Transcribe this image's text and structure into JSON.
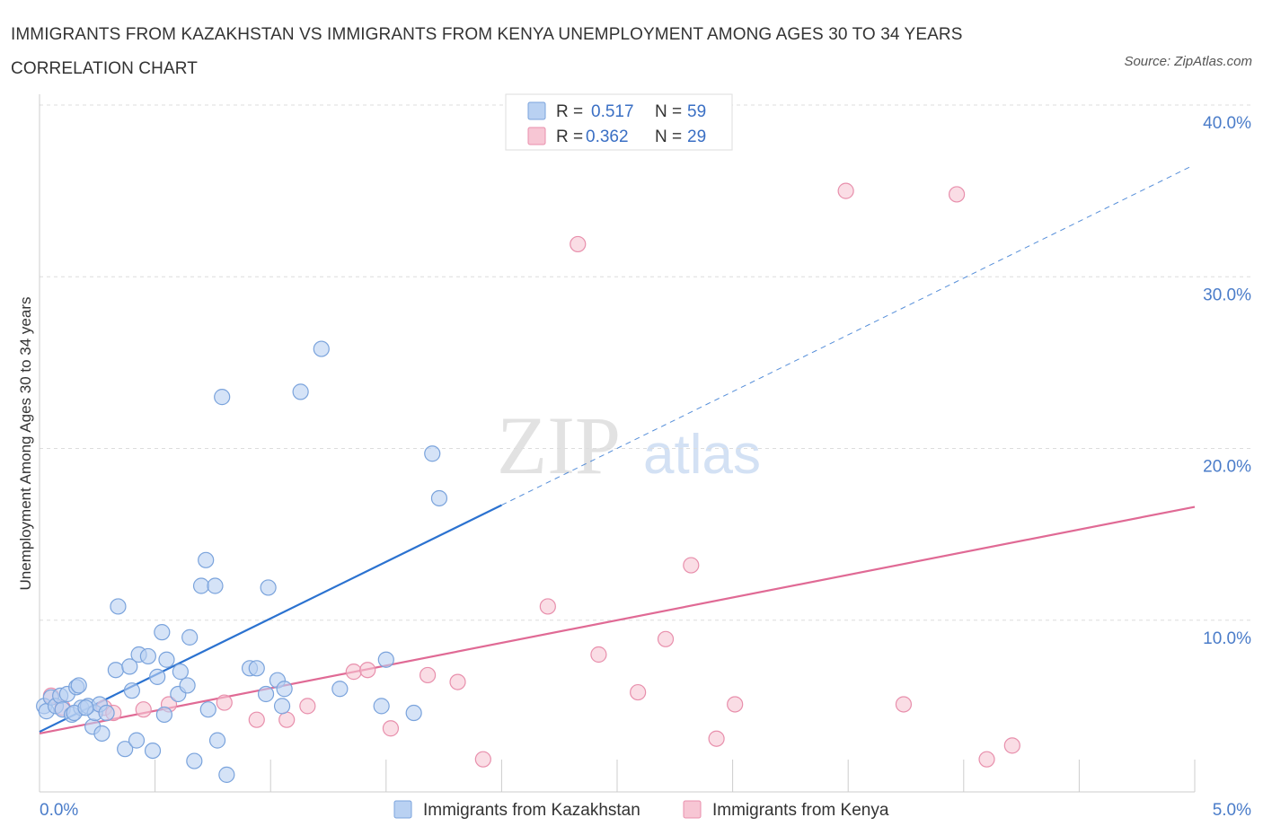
{
  "title": "IMMIGRANTS FROM KAZAKHSTAN VS IMMIGRANTS FROM KENYA UNEMPLOYMENT AMONG AGES 30 TO 34 YEARS CORRELATION CHART",
  "source": "Source: ZipAtlas.com",
  "watermark": {
    "zip": "ZIP",
    "atlas": "atlas"
  },
  "colors": {
    "blue_fill": "#b9d1f2",
    "blue_stroke": "#7aa3dc",
    "blue_line": "#2b72d0",
    "pink_fill": "#f7c6d4",
    "pink_stroke": "#e88fac",
    "pink_line": "#e06a95",
    "grid": "#dddddd",
    "axis_label": "#4a7cc9"
  },
  "chart_data": {
    "type": "scatter",
    "xlabel": "",
    "ylabel": "Unemployment Among Ages 30 to 34 years",
    "xlim": [
      0,
      5
    ],
    "ylim": [
      0,
      40
    ],
    "x_tick_labels": [
      "0.0%",
      "5.0%"
    ],
    "y_ticks": [
      10,
      20,
      30,
      40
    ],
    "y_tick_labels": [
      "10.0%",
      "20.0%",
      "30.0%",
      "40.0%"
    ],
    "legend_top": [
      {
        "r_label": "R =",
        "r": "0.517",
        "n_label": "N =",
        "n": "59"
      },
      {
        "r_label": "R =",
        "r": "0.362",
        "n_label": "N =",
        "n": "29"
      }
    ],
    "series": [
      {
        "name": "Immigrants from Kazakhstan",
        "color": "blue",
        "trend": {
          "x0": 0,
          "y0": 3.5,
          "x1": 2.0,
          "y1": 16.7,
          "dashed_to_x": 4.98,
          "dashed_to_y": 36.4
        },
        "points": [
          [
            0.02,
            5.0
          ],
          [
            0.03,
            4.7
          ],
          [
            0.05,
            5.5
          ],
          [
            0.07,
            5.0
          ],
          [
            0.09,
            5.6
          ],
          [
            0.1,
            4.8
          ],
          [
            0.12,
            5.7
          ],
          [
            0.14,
            4.5
          ],
          [
            0.16,
            6.1
          ],
          [
            0.17,
            6.2
          ],
          [
            0.18,
            4.9
          ],
          [
            0.21,
            5.0
          ],
          [
            0.23,
            3.8
          ],
          [
            0.24,
            4.6
          ],
          [
            0.26,
            5.1
          ],
          [
            0.27,
            3.4
          ],
          [
            0.29,
            4.6
          ],
          [
            0.33,
            7.1
          ],
          [
            0.34,
            10.8
          ],
          [
            0.37,
            2.5
          ],
          [
            0.39,
            7.3
          ],
          [
            0.4,
            5.9
          ],
          [
            0.42,
            3.0
          ],
          [
            0.43,
            8.0
          ],
          [
            0.47,
            7.9
          ],
          [
            0.49,
            2.4
          ],
          [
            0.51,
            6.7
          ],
          [
            0.53,
            9.3
          ],
          [
            0.54,
            4.5
          ],
          [
            0.55,
            7.7
          ],
          [
            0.6,
            5.7
          ],
          [
            0.61,
            7.0
          ],
          [
            0.64,
            6.2
          ],
          [
            0.65,
            9.0
          ],
          [
            0.67,
            1.8
          ],
          [
            0.7,
            12.0
          ],
          [
            0.72,
            13.5
          ],
          [
            0.73,
            4.8
          ],
          [
            0.76,
            12.0
          ],
          [
            0.77,
            3.0
          ],
          [
            0.79,
            23.0
          ],
          [
            0.81,
            1.0
          ],
          [
            0.91,
            7.2
          ],
          [
            0.94,
            7.2
          ],
          [
            0.98,
            5.7
          ],
          [
            0.99,
            11.9
          ],
          [
            1.03,
            6.5
          ],
          [
            1.05,
            5.0
          ],
          [
            1.06,
            6.0
          ],
          [
            1.13,
            23.3
          ],
          [
            1.22,
            25.8
          ],
          [
            1.3,
            6.0
          ],
          [
            1.48,
            5.0
          ],
          [
            1.5,
            7.7
          ],
          [
            1.62,
            4.6
          ],
          [
            1.7,
            19.7
          ],
          [
            1.73,
            17.1
          ],
          [
            0.15,
            4.6
          ],
          [
            0.2,
            4.9
          ]
        ]
      },
      {
        "name": "Immigrants from Kenya",
        "color": "pink",
        "trend": {
          "x0": 0,
          "y0": 3.4,
          "x1": 5.0,
          "y1": 16.6
        },
        "points": [
          [
            0.05,
            5.6
          ],
          [
            0.1,
            4.9
          ],
          [
            0.28,
            4.9
          ],
          [
            0.45,
            4.8
          ],
          [
            0.56,
            5.1
          ],
          [
            0.8,
            5.2
          ],
          [
            0.94,
            4.2
          ],
          [
            1.07,
            4.2
          ],
          [
            1.16,
            5.0
          ],
          [
            1.36,
            7.0
          ],
          [
            1.42,
            7.1
          ],
          [
            1.52,
            3.7
          ],
          [
            1.68,
            6.8
          ],
          [
            1.81,
            6.4
          ],
          [
            1.92,
            1.9
          ],
          [
            2.2,
            10.8
          ],
          [
            2.33,
            31.9
          ],
          [
            2.42,
            8.0
          ],
          [
            2.59,
            5.8
          ],
          [
            2.71,
            8.9
          ],
          [
            2.82,
            13.2
          ],
          [
            2.93,
            3.1
          ],
          [
            3.01,
            5.1
          ],
          [
            3.49,
            35.0
          ],
          [
            3.74,
            5.1
          ],
          [
            3.97,
            34.8
          ],
          [
            4.1,
            1.9
          ],
          [
            4.21,
            2.7
          ],
          [
            0.32,
            4.6
          ]
        ]
      }
    ]
  }
}
